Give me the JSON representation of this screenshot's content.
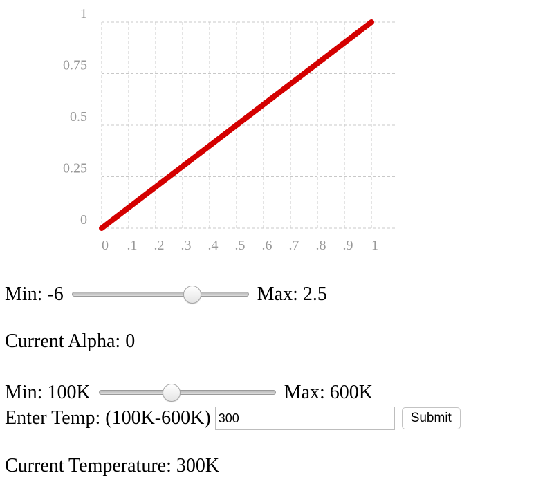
{
  "chart_data": {
    "type": "line",
    "x": [
      0,
      1
    ],
    "series": [
      {
        "values": [
          0,
          1
        ],
        "color": "#d40000"
      }
    ],
    "xlim": [
      0,
      1
    ],
    "ylim": [
      0,
      1
    ],
    "x_ticks": [
      0,
      0.1,
      0.2,
      0.3,
      0.4,
      0.5,
      0.6,
      0.7,
      0.8,
      0.9,
      1
    ],
    "x_tick_labels": [
      "0",
      ".1",
      ".2",
      ".3",
      ".4",
      ".5",
      ".6",
      ".7",
      ".8",
      ".9",
      "1"
    ],
    "y_ticks": [
      0,
      0.25,
      0.5,
      0.75,
      1
    ],
    "y_tick_labels": [
      "0",
      "0.25",
      "0.5",
      "0.75",
      "1"
    ],
    "grid": true,
    "grid_color": "#c8c8c8",
    "tick_label_color": "#999999"
  },
  "alpha_slider": {
    "min_label": "Min: -6",
    "max_label": "Max: 2.5",
    "min": -6,
    "max": 2.5,
    "fraction": 0.7
  },
  "alpha_status": "Current Alpha: 0",
  "temp_slider": {
    "min_label": "Min: 100K",
    "max_label": "Max: 600K",
    "min": 100,
    "max": 600,
    "fraction": 0.4
  },
  "temp_form": {
    "label": "Enter Temp: (100K-600K)",
    "value": "300",
    "submit_label": "Submit"
  },
  "temp_status": "Current Temperature: 300K"
}
